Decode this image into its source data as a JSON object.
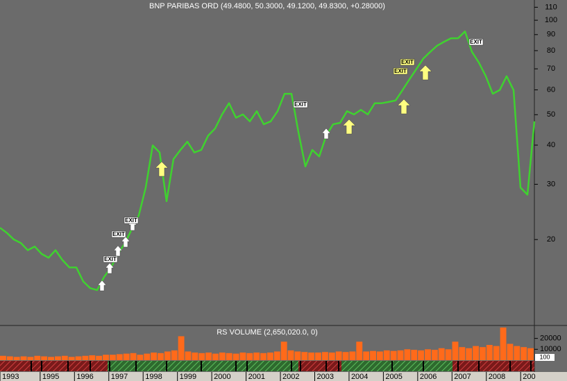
{
  "chart_data": [
    {
      "type": "line",
      "title": "BNP PARIBAS ORD (49.4800, 50.3000, 49.1200, 49.8300, +0.28000)",
      "log_scale": true,
      "color": "#3fd22f",
      "ylim": [
        10.7,
        116
      ],
      "yticks": [
        20,
        30,
        40,
        50,
        60,
        70,
        80,
        90,
        100,
        110
      ],
      "xlim": [
        1993.83,
        2009.4
      ],
      "xticks": [
        {
          "value": 1993.83,
          "label": "1993"
        },
        1995,
        1996,
        1997,
        1998,
        1999,
        2000,
        2001,
        2002,
        2003,
        2004,
        2005,
        2006,
        2007,
        2008,
        {
          "value": 2009,
          "label": "200"
        }
      ],
      "values": [
        21.8,
        21,
        20,
        19.5,
        18.5,
        19,
        18,
        17.5,
        18.5,
        17.2,
        16.3,
        16.3,
        14.7,
        14,
        13.8,
        15.2,
        16.3,
        18,
        19.5,
        21.6,
        23.9,
        29.3,
        39.9,
        37.9,
        26.5,
        36.1,
        38.6,
        41,
        37.9,
        38.6,
        42.9,
        45.2,
        50.1,
        54.4,
        48.9,
        50.1,
        47.6,
        51.3,
        46.6,
        47.6,
        51.3,
        58.3,
        58.3,
        44,
        34.2,
        38.6,
        36.8,
        42.9,
        46.6,
        47.1,
        51.3,
        50.1,
        51.8,
        50.1,
        54.4,
        54.4,
        54.9,
        55.5,
        59.9,
        64.8,
        69.9,
        75.5,
        79.3,
        83,
        85.4,
        87.6,
        87.6,
        92.1,
        79.3,
        73.3,
        66.3,
        58.3,
        59.9,
        66.3,
        59.9,
        29.3,
        27.8,
        47.6
      ]
    },
    {
      "type": "bar",
      "title": "RS VOLUME (2,650,020.0, 0)",
      "color": "#ff6a1a",
      "ylim": [
        0,
        30600
      ],
      "yticks": [
        10000,
        20000
      ],
      "last_label": "100",
      "values": [
        4000,
        3500,
        3000,
        3500,
        3000,
        4000,
        3500,
        3000,
        3500,
        4000,
        3000,
        3500,
        4000,
        4500,
        4000,
        5000,
        5000,
        5500,
        6000,
        6500,
        5000,
        6000,
        7000,
        6500,
        8000,
        9000,
        22000,
        8000,
        7000,
        6500,
        7000,
        6000,
        7000,
        6500,
        6000,
        7000,
        6500,
        7000,
        6500,
        7000,
        8000,
        17000,
        9000,
        8000,
        7500,
        7000,
        7000,
        7500,
        7000,
        8000,
        7500,
        8000,
        17000,
        8000,
        8500,
        8000,
        9000,
        8500,
        9000,
        10000,
        9500,
        9000,
        10000,
        9500,
        11000,
        10000,
        17000,
        12000,
        11000,
        13000,
        12000,
        14000,
        13000,
        30000,
        15000,
        13000,
        12000,
        11000
      ]
    }
  ],
  "annotations": {
    "exit_label": "EXIT"
  }
}
